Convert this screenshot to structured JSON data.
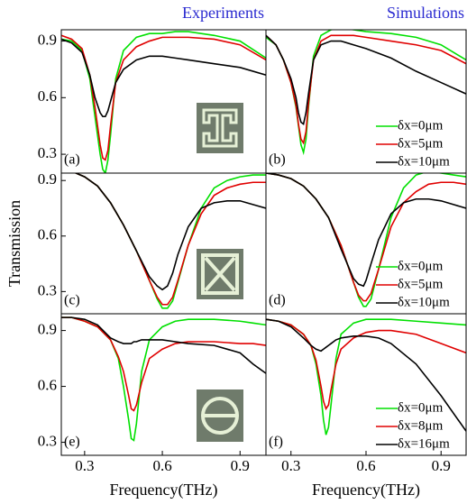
{
  "chart_data": [
    {
      "type": "line",
      "title": "Experiments",
      "label": "(a)",
      "x": [
        0.21,
        0.25,
        0.29,
        0.32,
        0.34,
        0.36,
        0.37,
        0.38,
        0.39,
        0.4,
        0.42,
        0.45,
        0.5,
        0.55,
        0.6,
        0.65,
        0.7,
        0.8,
        0.9,
        1.0
      ],
      "series": [
        {
          "color": "#00e000",
          "values": [
            0.91,
            0.9,
            0.85,
            0.7,
            0.5,
            0.3,
            0.22,
            0.2,
            0.27,
            0.4,
            0.7,
            0.85,
            0.92,
            0.94,
            0.94,
            0.95,
            0.95,
            0.93,
            0.9,
            0.81
          ]
        },
        {
          "color": "#e00000",
          "values": [
            0.93,
            0.91,
            0.86,
            0.72,
            0.55,
            0.35,
            0.28,
            0.27,
            0.32,
            0.45,
            0.68,
            0.8,
            0.87,
            0.9,
            0.92,
            0.92,
            0.92,
            0.91,
            0.88,
            0.8
          ]
        },
        {
          "color": "#000000",
          "values": [
            0.91,
            0.89,
            0.84,
            0.72,
            0.6,
            0.52,
            0.5,
            0.5,
            0.53,
            0.58,
            0.68,
            0.75,
            0.8,
            0.82,
            0.82,
            0.81,
            0.8,
            0.78,
            0.76,
            0.72
          ]
        }
      ],
      "xlim": [
        0.21,
        1.0
      ],
      "ylim": [
        0.2,
        0.96
      ],
      "yticks": [
        0.3,
        0.6,
        0.9
      ]
    },
    {
      "type": "line",
      "title": "Simulations",
      "label": "(b)",
      "legend": "lower right",
      "x": [
        0.2,
        0.24,
        0.27,
        0.3,
        0.32,
        0.33,
        0.34,
        0.35,
        0.36,
        0.37,
        0.39,
        0.42,
        0.46,
        0.5,
        0.55,
        0.6,
        0.7,
        0.8,
        0.9,
        1.0
      ],
      "series": [
        {
          "name": "δx=0μm",
          "color": "#00e000",
          "values": [
            0.92,
            0.88,
            0.8,
            0.68,
            0.55,
            0.45,
            0.35,
            0.31,
            0.38,
            0.55,
            0.82,
            0.93,
            0.96,
            0.97,
            0.96,
            0.95,
            0.94,
            0.92,
            0.88,
            0.8
          ]
        },
        {
          "name": "δx=5μm",
          "color": "#e00000",
          "values": [
            0.93,
            0.88,
            0.8,
            0.68,
            0.56,
            0.46,
            0.38,
            0.36,
            0.42,
            0.57,
            0.8,
            0.9,
            0.93,
            0.93,
            0.93,
            0.92,
            0.9,
            0.88,
            0.85,
            0.78
          ]
        },
        {
          "name": "δx=10μm",
          "color": "#000000",
          "values": [
            0.93,
            0.88,
            0.8,
            0.7,
            0.6,
            0.52,
            0.47,
            0.46,
            0.52,
            0.62,
            0.8,
            0.88,
            0.9,
            0.9,
            0.88,
            0.86,
            0.81,
            0.74,
            0.68,
            0.62
          ]
        }
      ],
      "xlim": [
        0.2,
        1.0
      ],
      "ylim": [
        0.2,
        0.96
      ]
    },
    {
      "type": "line",
      "label": "(c)",
      "y_label": "Transmission",
      "x": [
        0.21,
        0.25,
        0.3,
        0.35,
        0.4,
        0.45,
        0.5,
        0.55,
        0.58,
        0.6,
        0.62,
        0.64,
        0.66,
        0.7,
        0.75,
        0.8,
        0.85,
        0.9,
        0.95,
        1.0
      ],
      "series": [
        {
          "color": "#00e000",
          "values": [
            0.95,
            0.95,
            0.92,
            0.87,
            0.78,
            0.66,
            0.52,
            0.36,
            0.26,
            0.21,
            0.21,
            0.25,
            0.35,
            0.55,
            0.75,
            0.86,
            0.9,
            0.92,
            0.93,
            0.93
          ]
        },
        {
          "color": "#e00000",
          "values": [
            0.95,
            0.95,
            0.92,
            0.87,
            0.78,
            0.66,
            0.52,
            0.36,
            0.27,
            0.23,
            0.23,
            0.27,
            0.36,
            0.55,
            0.72,
            0.82,
            0.86,
            0.88,
            0.89,
            0.89
          ]
        },
        {
          "color": "#000000",
          "values": [
            0.95,
            0.95,
            0.92,
            0.87,
            0.78,
            0.66,
            0.52,
            0.38,
            0.33,
            0.31,
            0.33,
            0.4,
            0.5,
            0.65,
            0.75,
            0.78,
            0.79,
            0.79,
            0.77,
            0.75
          ]
        }
      ],
      "xlim": [
        0.21,
        1.0
      ],
      "ylim": [
        0.18,
        0.94
      ],
      "yticks": [
        0.3,
        0.6,
        0.9
      ]
    },
    {
      "type": "line",
      "label": "(d)",
      "legend": "lower right",
      "x": [
        0.2,
        0.25,
        0.3,
        0.35,
        0.4,
        0.45,
        0.5,
        0.55,
        0.57,
        0.59,
        0.6,
        0.62,
        0.65,
        0.7,
        0.75,
        0.8,
        0.85,
        0.9,
        0.95,
        1.0
      ],
      "series": [
        {
          "name": "δx=0μm",
          "color": "#00e000",
          "values": [
            0.94,
            0.93,
            0.91,
            0.87,
            0.8,
            0.7,
            0.55,
            0.35,
            0.27,
            0.22,
            0.22,
            0.26,
            0.42,
            0.7,
            0.86,
            0.93,
            0.95,
            0.94,
            0.93,
            0.92
          ]
        },
        {
          "name": "δx=5μm",
          "color": "#e00000",
          "values": [
            0.94,
            0.93,
            0.91,
            0.87,
            0.8,
            0.7,
            0.55,
            0.35,
            0.28,
            0.25,
            0.25,
            0.29,
            0.42,
            0.65,
            0.78,
            0.84,
            0.88,
            0.89,
            0.89,
            0.88
          ]
        },
        {
          "name": "δx=10μm",
          "color": "#000000",
          "values": [
            0.94,
            0.93,
            0.91,
            0.87,
            0.8,
            0.7,
            0.53,
            0.37,
            0.34,
            0.33,
            0.36,
            0.45,
            0.58,
            0.72,
            0.78,
            0.8,
            0.8,
            0.79,
            0.77,
            0.75
          ]
        }
      ],
      "xlim": [
        0.2,
        1.0
      ],
      "ylim": [
        0.18,
        0.94
      ]
    },
    {
      "type": "line",
      "label": "(e)",
      "x_label": "Frequency(THz)",
      "x": [
        0.21,
        0.25,
        0.3,
        0.35,
        0.4,
        0.43,
        0.45,
        0.47,
        0.48,
        0.49,
        0.5,
        0.52,
        0.55,
        0.6,
        0.65,
        0.7,
        0.8,
        0.9,
        0.95,
        1.0
      ],
      "series": [
        {
          "color": "#00e000",
          "values": [
            0.97,
            0.97,
            0.95,
            0.92,
            0.85,
            0.75,
            0.6,
            0.42,
            0.32,
            0.31,
            0.4,
            0.68,
            0.85,
            0.92,
            0.95,
            0.96,
            0.96,
            0.95,
            0.94,
            0.93
          ]
        },
        {
          "color": "#e00000",
          "values": [
            0.97,
            0.97,
            0.95,
            0.92,
            0.85,
            0.76,
            0.68,
            0.55,
            0.48,
            0.47,
            0.5,
            0.62,
            0.75,
            0.8,
            0.83,
            0.84,
            0.84,
            0.83,
            0.83,
            0.82
          ]
        },
        {
          "color": "#000000",
          "values": [
            0.97,
            0.97,
            0.96,
            0.93,
            0.86,
            0.84,
            0.83,
            0.83,
            0.83,
            0.84,
            0.84,
            0.85,
            0.85,
            0.85,
            0.84,
            0.83,
            0.82,
            0.78,
            0.72,
            0.67
          ]
        }
      ],
      "xlim": [
        0.21,
        1.0
      ],
      "ylim": [
        0.23,
        0.99
      ],
      "xticks": [
        0.3,
        0.6,
        0.9
      ],
      "yticks": [
        0.3,
        0.6,
        0.9
      ]
    },
    {
      "type": "line",
      "label": "(f)",
      "x_label": "Frequency(THz)",
      "legend": "lower right",
      "x": [
        0.2,
        0.25,
        0.3,
        0.35,
        0.38,
        0.4,
        0.42,
        0.43,
        0.44,
        0.45,
        0.46,
        0.48,
        0.5,
        0.55,
        0.6,
        0.65,
        0.7,
        0.8,
        0.9,
        1.0
      ],
      "series": [
        {
          "name": "δx=0μm",
          "color": "#00e000",
          "values": [
            0.96,
            0.95,
            0.93,
            0.88,
            0.82,
            0.72,
            0.55,
            0.42,
            0.34,
            0.38,
            0.5,
            0.75,
            0.88,
            0.94,
            0.96,
            0.96,
            0.96,
            0.95,
            0.94,
            0.93
          ]
        },
        {
          "name": "δx=8μm",
          "color": "#e00000",
          "values": [
            0.96,
            0.95,
            0.93,
            0.88,
            0.82,
            0.74,
            0.6,
            0.52,
            0.48,
            0.5,
            0.58,
            0.72,
            0.8,
            0.86,
            0.89,
            0.9,
            0.9,
            0.88,
            0.83,
            0.78
          ]
        },
        {
          "name": "δx=16μm",
          "color": "#000000",
          "values": [
            0.96,
            0.95,
            0.92,
            0.86,
            0.82,
            0.8,
            0.79,
            0.8,
            0.81,
            0.82,
            0.83,
            0.85,
            0.86,
            0.87,
            0.87,
            0.86,
            0.83,
            0.72,
            0.55,
            0.36
          ]
        }
      ],
      "xlim": [
        0.2,
        1.0
      ],
      "ylim": [
        0.23,
        0.99
      ],
      "xticks": [
        0.3,
        0.6,
        0.9
      ]
    }
  ]
}
